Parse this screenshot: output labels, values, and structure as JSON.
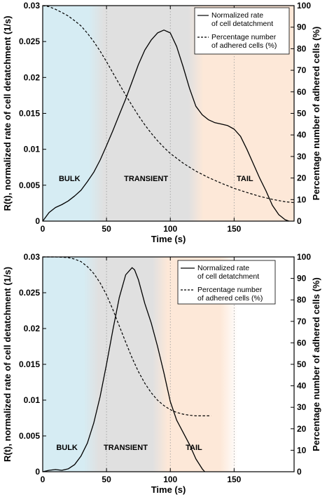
{
  "chart_data": [
    {
      "type": "line",
      "xlabel": "Time (s)",
      "ylabel": "R(t), normalized rate of cell detatchment (1/s)",
      "y2label": "Percentage number of adhered cells (%)",
      "xlim": [
        0,
        197
      ],
      "ylim": [
        0,
        0.03
      ],
      "y2lim": [
        0,
        100
      ],
      "xticks": [
        "0",
        "50",
        "100",
        "150"
      ],
      "yticks": [
        "0",
        "0.005",
        "0.01",
        "0.015",
        "0.02",
        "0.025",
        "0.03"
      ],
      "y2ticks": [
        "0",
        "10",
        "20",
        "30",
        "40",
        "50",
        "60",
        "70",
        "80",
        "90",
        "100"
      ],
      "grid": "dotted vertical",
      "legend_position": "top-right",
      "regions": [
        {
          "label": "BULK",
          "color": "#d6ecf3",
          "x": [
            0,
            42
          ]
        },
        {
          "label": "TRANSIENT",
          "color": "#e0e0e0",
          "x": [
            42,
            120
          ]
        },
        {
          "label": "TAIL",
          "color": "#fde8d8",
          "x": [
            120,
            197
          ]
        }
      ],
      "series": [
        {
          "name": "Normalized rate\nof cell detatchment",
          "axis": "left",
          "style": "solid",
          "x": [
            0,
            5,
            10,
            15,
            20,
            25,
            30,
            35,
            40,
            45,
            50,
            55,
            60,
            65,
            70,
            75,
            80,
            85,
            90,
            95,
            100,
            105,
            110,
            115,
            120,
            125,
            130,
            135,
            140,
            145,
            150,
            155,
            160,
            165,
            170,
            175,
            180,
            185,
            190,
            193
          ],
          "values": [
            0,
            0.0012,
            0.0019,
            0.0023,
            0.0028,
            0.0035,
            0.0043,
            0.0055,
            0.0068,
            0.0085,
            0.0105,
            0.0126,
            0.0148,
            0.017,
            0.0194,
            0.0218,
            0.0238,
            0.0252,
            0.0262,
            0.0266,
            0.0262,
            0.0243,
            0.0215,
            0.0185,
            0.016,
            0.0148,
            0.0141,
            0.0137,
            0.0135,
            0.0133,
            0.0128,
            0.0118,
            0.01,
            0.008,
            0.006,
            0.0042,
            0.0022,
            0.0009,
            0.0002,
            0
          ]
        },
        {
          "name": "Percentage number\nof adhered cells (%)",
          "axis": "right",
          "style": "dashed",
          "x": [
            0,
            5,
            10,
            15,
            20,
            25,
            30,
            35,
            40,
            45,
            50,
            55,
            60,
            65,
            70,
            75,
            80,
            85,
            90,
            95,
            100,
            110,
            120,
            130,
            140,
            150,
            160,
            170,
            180,
            190,
            197
          ],
          "values": [
            100,
            99.5,
            98.3,
            96.8,
            95.2,
            93,
            90.6,
            87.2,
            83.3,
            78.9,
            74,
            68.8,
            63.6,
            58.5,
            53.6,
            49,
            44.7,
            40.8,
            37.3,
            34.2,
            31.4,
            26.9,
            23.2,
            20.2,
            17.6,
            15.2,
            13.3,
            11.5,
            10.1,
            9,
            8.6
          ]
        }
      ]
    },
    {
      "type": "line",
      "xlabel": "Time (s)",
      "ylabel": "R(t), normalized rate of cell detatchment (1/s)",
      "y2label": "Percentage number of adhered cells (%)",
      "xlim": [
        0,
        197
      ],
      "ylim": [
        0,
        0.03
      ],
      "y2lim": [
        0,
        100
      ],
      "xticks": [
        "0",
        "50",
        "100",
        "150"
      ],
      "yticks": [
        "0",
        "0.005",
        "0.01",
        "0.015",
        "0.02",
        "0.025",
        "0.03"
      ],
      "y2ticks": [
        "0",
        "10",
        "20",
        "30",
        "40",
        "50",
        "60",
        "70",
        "80",
        "90",
        "100"
      ],
      "grid": "dotted vertical",
      "legend_position": "top-right",
      "regions": [
        {
          "label": "BULK",
          "color": "#d6ecf3",
          "x": [
            0,
            38
          ]
        },
        {
          "label": "TRANSIENT",
          "color": "#e0e0e0",
          "x": [
            38,
            92
          ]
        },
        {
          "label": "TAIL",
          "color": "#fde8d8",
          "x": [
            92,
            145
          ]
        }
      ],
      "series": [
        {
          "name": "Normalized rate\nof cell detatchment",
          "axis": "left",
          "style": "solid",
          "x": [
            0,
            5,
            10,
            15,
            20,
            25,
            30,
            35,
            40,
            45,
            50,
            55,
            60,
            65,
            70,
            72,
            75,
            80,
            85,
            90,
            95,
            100,
            105,
            110,
            115,
            120,
            125,
            127
          ],
          "values": [
            0,
            0.0002,
            0.0003,
            0.0002,
            0.0004,
            0.001,
            0.0022,
            0.004,
            0.0068,
            0.0105,
            0.015,
            0.0198,
            0.0243,
            0.0275,
            0.0285,
            0.0282,
            0.0268,
            0.0235,
            0.0208,
            0.0175,
            0.0138,
            0.0098,
            0.0072,
            0.0055,
            0.0038,
            0.0018,
            0.0004,
            0
          ]
        },
        {
          "name": "Percentage number\nof adhered cells (%)",
          "axis": "right",
          "style": "dashed",
          "x": [
            0,
            10,
            20,
            25,
            30,
            35,
            40,
            45,
            50,
            55,
            60,
            65,
            70,
            75,
            80,
            85,
            90,
            95,
            100,
            105,
            110,
            115,
            120,
            125,
            132
          ],
          "values": [
            100,
            100,
            99.7,
            99,
            97.8,
            95.5,
            92.3,
            87.9,
            82.4,
            75.5,
            67.9,
            60.3,
            53,
            46.6,
            41.2,
            36.8,
            33.3,
            30.8,
            28.9,
            27.6,
            26.8,
            26.3,
            26,
            26,
            26
          ]
        }
      ]
    }
  ]
}
